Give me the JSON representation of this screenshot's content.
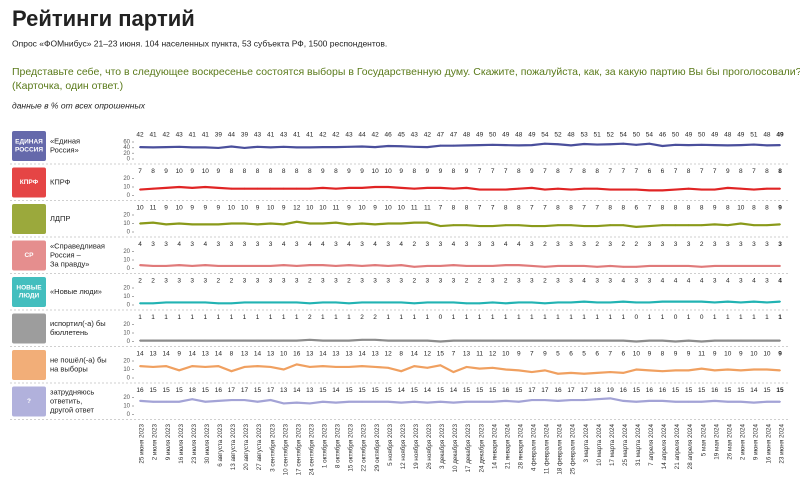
{
  "chart_data": {
    "type": "line",
    "title": "Рейтинги партий",
    "subtitle": "Опрос «ФОМнибус» 21–23 июня. 104 населенных пункта, 53 субъекта РФ, 1500 респондентов.",
    "question": [
      "Представьте себе, что в следующее воскресенье состоятся выборы в Государственную думу. Скажите, пожалуйста, как, за какую партию Вы бы проголосовали?",
      "(Карточка, один ответ.)"
    ],
    "note": "данные в % от всех опрошенных",
    "x": [
      "25 июня 2023",
      "2 июля 2023",
      "9 июля 2023",
      "16 июля 2023",
      "23 июля 2023",
      "30 июля 2023",
      "6 августа 2023",
      "13 августа 2023",
      "20 августа 2023",
      "27 августа 2023",
      "3 сентября 2023",
      "10 сентября 2023",
      "17 сентября 2023",
      "24 сентября 2023",
      "1 октября 2023",
      "8 октября 2023",
      "15 октября 2023",
      "22 октября 2023",
      "29 октября 2023",
      "5 ноября 2023",
      "12 ноября 2023",
      "19 ноября 2023",
      "26 ноября 2023",
      "3 декабря 2023",
      "10 декабря 2023",
      "17 декабря 2023",
      "24 декабря 2023",
      "14 января 2024",
      "21 января 2024",
      "28 января 2024",
      "4 февраля 2024",
      "11 февраля 2024",
      "18 февраля 2024",
      "25 февраля 2024",
      "3 марта 2024",
      "10 марта 2024",
      "17 марта 2024",
      "25 марта 2024",
      "31 марта 2024",
      "7 апреля 2024",
      "14 апреля 2024",
      "21 апреля 2024",
      "28 апреля 2024",
      "5 мая 2024",
      "19 мая 2024",
      "26 мая 2024",
      "2 июня 2024",
      "9 июня 2024",
      "16 июня 2024",
      "23 июня 2024"
    ],
    "panels": [
      {
        "label": [
          "«Единая",
          "Россия»"
        ],
        "logo": [
          "ЕДИНАЯ",
          "РОССИЯ"
        ],
        "color": "#4a4f9c",
        "ylim": [
          0,
          60
        ],
        "yticks": [
          0,
          20,
          40,
          60
        ],
        "values": [
          42,
          41,
          42,
          43,
          41,
          41,
          39,
          44,
          39,
          43,
          41,
          43,
          41,
          41,
          42,
          42,
          43,
          44,
          42,
          46,
          45,
          43,
          42,
          47,
          47,
          48,
          49,
          50,
          49,
          48,
          49,
          54,
          52,
          48,
          53,
          51,
          52,
          54,
          50,
          54,
          46,
          50,
          49,
          50,
          49,
          48,
          49,
          51,
          48,
          49
        ]
      },
      {
        "label": [
          "КПРФ"
        ],
        "logo": [
          "КПРФ"
        ],
        "color": "#e02424",
        "ylim": [
          0,
          20
        ],
        "yticks": [
          0,
          10,
          20
        ],
        "values": [
          7,
          8,
          9,
          10,
          9,
          10,
          9,
          8,
          8,
          8,
          8,
          8,
          8,
          8,
          9,
          8,
          9,
          9,
          10,
          10,
          9,
          8,
          9,
          9,
          8,
          9,
          7,
          7,
          7,
          8,
          9,
          7,
          8,
          7,
          8,
          8,
          7,
          7,
          7,
          6,
          6,
          7,
          8,
          7,
          7,
          9,
          8,
          7,
          8,
          8
        ]
      },
      {
        "label": [
          "ЛДПР"
        ],
        "logo": [],
        "color": "#8a9a1a",
        "ylim": [
          0,
          20
        ],
        "yticks": [
          0,
          10,
          20
        ],
        "values": [
          10,
          11,
          9,
          10,
          9,
          9,
          9,
          10,
          10,
          9,
          10,
          9,
          12,
          10,
          10,
          11,
          9,
          10,
          9,
          10,
          10,
          11,
          11,
          7,
          8,
          8,
          7,
          7,
          8,
          8,
          7,
          7,
          8,
          8,
          7,
          7,
          8,
          8,
          6,
          7,
          8,
          8,
          8,
          8,
          9,
          8,
          10,
          8,
          8,
          9
        ]
      },
      {
        "label": [
          "«Справедливая",
          "Россия –",
          "За правду»"
        ],
        "logo": [
          "СР"
        ],
        "color": "#e07a7a",
        "ylim": [
          0,
          20
        ],
        "yticks": [
          0,
          10,
          20
        ],
        "values": [
          4,
          3,
          3,
          4,
          3,
          4,
          3,
          3,
          3,
          3,
          3,
          4,
          3,
          4,
          4,
          3,
          4,
          3,
          4,
          3,
          4,
          2,
          3,
          3,
          4,
          3,
          3,
          3,
          4,
          4,
          3,
          2,
          3,
          3,
          3,
          2,
          3,
          2,
          2,
          3,
          3,
          3,
          3,
          2,
          3,
          3,
          3,
          3,
          3,
          3
        ]
      },
      {
        "label": [
          "«Новые люди»"
        ],
        "logo": [
          "НОВЫЕ",
          "ЛЮДИ"
        ],
        "color": "#22b3b3",
        "ylim": [
          0,
          20
        ],
        "yticks": [
          0,
          10,
          20
        ],
        "values": [
          2,
          2,
          3,
          3,
          3,
          3,
          2,
          2,
          3,
          3,
          3,
          3,
          3,
          2,
          3,
          3,
          2,
          3,
          3,
          3,
          3,
          2,
          3,
          3,
          3,
          2,
          2,
          3,
          2,
          3,
          3,
          2,
          3,
          3,
          4,
          3,
          3,
          4,
          3,
          3,
          4,
          4,
          4,
          4,
          3,
          4,
          3,
          4,
          3,
          4
        ]
      },
      {
        "label": [
          "испортил(-а) бы",
          "бюллетень"
        ],
        "logo": [],
        "color": "#8c8c8c",
        "ylim": [
          0,
          20
        ],
        "yticks": [
          0,
          10,
          20
        ],
        "values": [
          1,
          1,
          1,
          1,
          1,
          1,
          1,
          1,
          1,
          1,
          1,
          1,
          1,
          2,
          1,
          1,
          1,
          2,
          2,
          1,
          1,
          1,
          1,
          0,
          1,
          1,
          1,
          1,
          1,
          1,
          1,
          1,
          1,
          1,
          1,
          1,
          1,
          1,
          0,
          1,
          1,
          0,
          1,
          0,
          1,
          1,
          1,
          1,
          1,
          1
        ]
      },
      {
        "label": [
          "не пошёл(-а) бы",
          "на выборы"
        ],
        "logo": [],
        "color": "#f0a060",
        "ylim": [
          0,
          20
        ],
        "yticks": [
          0,
          10,
          20
        ],
        "values": [
          14,
          13,
          14,
          9,
          14,
          13,
          14,
          8,
          13,
          14,
          13,
          10,
          16,
          13,
          14,
          13,
          13,
          14,
          13,
          12,
          8,
          14,
          12,
          15,
          7,
          13,
          11,
          12,
          10,
          9,
          7,
          9,
          5,
          6,
          5,
          6,
          7,
          6,
          10,
          9,
          8,
          9,
          9,
          11,
          9,
          10,
          9,
          10,
          10,
          9
        ]
      },
      {
        "label": [
          "затрудняюсь",
          "ответить,",
          "другой ответ"
        ],
        "logo": [
          "?"
        ],
        "color": "#a3a3d6",
        "ylim": [
          0,
          20
        ],
        "yticks": [
          0,
          10,
          20
        ],
        "values": [
          16,
          15,
          15,
          15,
          18,
          15,
          16,
          17,
          17,
          15,
          17,
          13,
          14,
          13,
          15,
          14,
          15,
          15,
          15,
          15,
          14,
          15,
          14,
          15,
          14,
          15,
          15,
          15,
          16,
          15,
          17,
          17,
          16,
          17,
          17,
          18,
          19,
          16,
          15,
          16,
          16,
          15,
          15,
          15,
          16,
          15,
          15,
          14,
          15,
          15
        ]
      }
    ]
  }
}
